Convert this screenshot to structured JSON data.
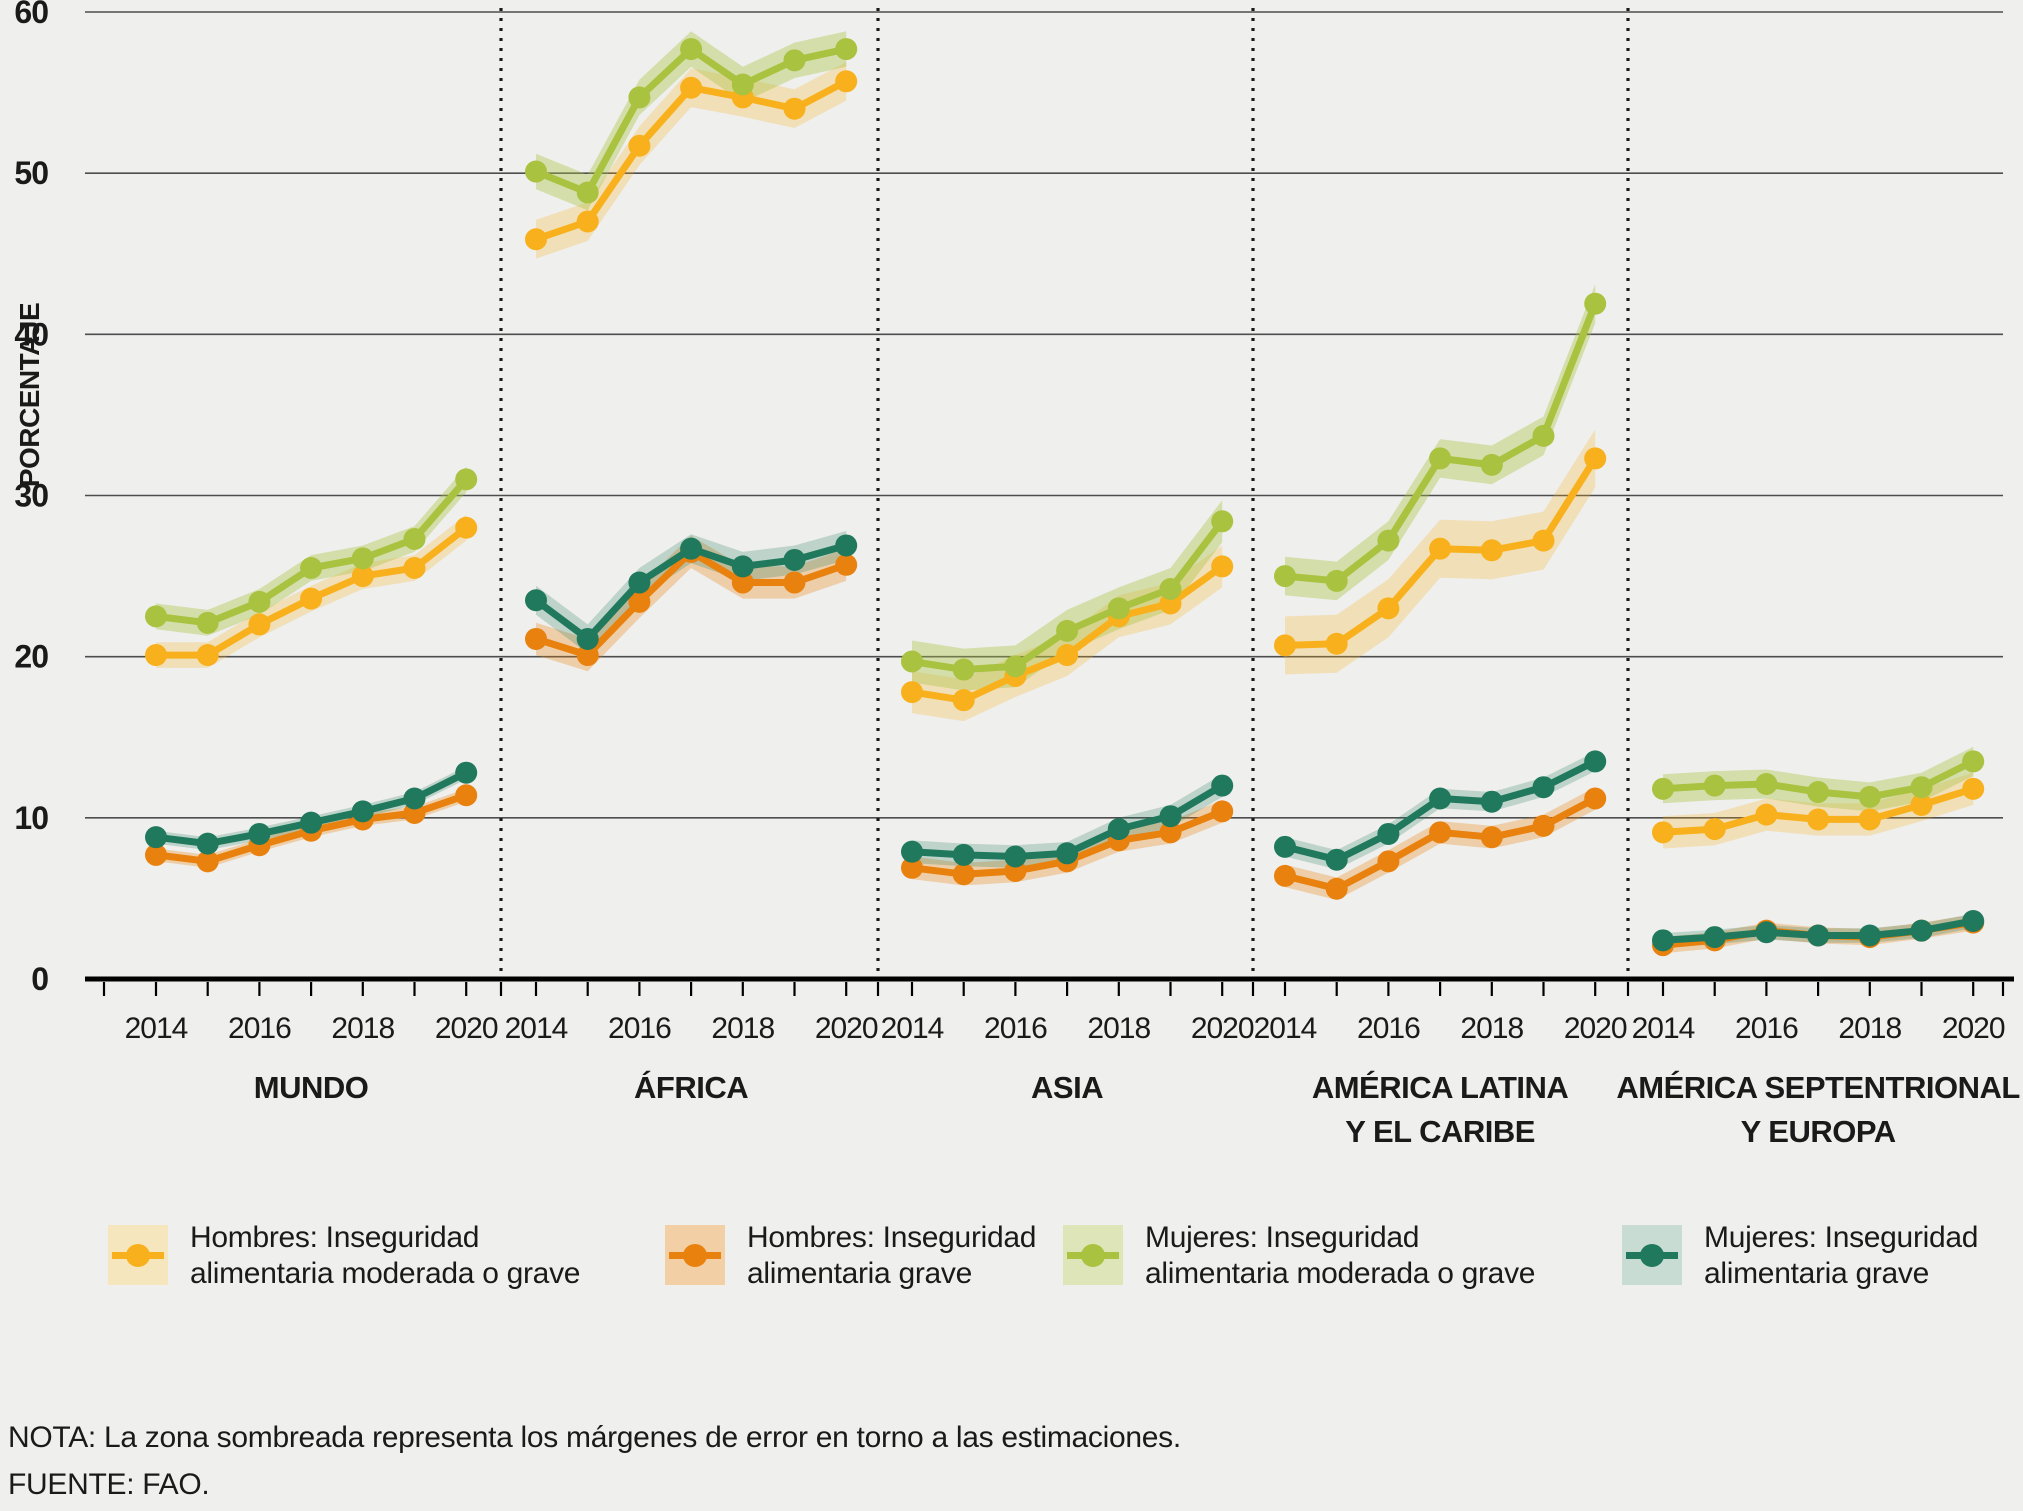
{
  "chart_data": {
    "type": "line",
    "title": "",
    "ylabel": "PORCENTAJE",
    "ylim": [
      0,
      60
    ],
    "yticks": [
      0,
      10,
      20,
      30,
      40,
      50,
      60
    ],
    "x": [
      2014,
      2015,
      2016,
      2017,
      2018,
      2019,
      2020
    ],
    "xtick_labels_shown": [
      "2014",
      "2016",
      "2018",
      "2020"
    ],
    "grid": "horizontal",
    "legend_position": "bottom",
    "shaded_bands": "error margins around estimates",
    "series_styles": [
      {
        "key": "hombres_moderada_o_grave",
        "label": "Hombres: Inseguridad alimentaria moderada o grave",
        "color": "#F8B11C",
        "band_fill": "rgba(248,177,28,0.25)",
        "legend_band": "#F6E6BE"
      },
      {
        "key": "hombres_grave",
        "label": "Hombres: Inseguridad alimentaria grave",
        "color": "#E8810E",
        "band_fill": "rgba(232,129,14,0.30)",
        "legend_band": "#F2CFA4"
      },
      {
        "key": "mujeres_moderada_o_grave",
        "label": "Mujeres: Inseguridad alimentaria moderada o grave",
        "color": "#A9C23F",
        "band_fill": "rgba(169,194,63,0.38)",
        "legend_band": "#DEE6B9"
      },
      {
        "key": "mujeres_grave",
        "label": "Mujeres: Inseguridad alimentaria grave",
        "color": "#20795D",
        "band_fill": "rgba(32,121,93,0.24)",
        "legend_band": "#C9DCD3"
      }
    ],
    "panels": [
      {
        "region_lines": [
          "MUNDO"
        ],
        "series": [
          {
            "key": "hombres_moderada_o_grave",
            "values": [
              20.1,
              20.1,
              22.0,
              23.6,
              25.0,
              25.5,
              28.0
            ],
            "error_margin": 0.8
          },
          {
            "key": "hombres_grave",
            "values": [
              7.7,
              7.3,
              8.3,
              9.2,
              9.9,
              10.3,
              11.4
            ],
            "error_margin": 0.4
          },
          {
            "key": "mujeres_moderada_o_grave",
            "values": [
              22.5,
              22.1,
              23.4,
              25.5,
              26.1,
              27.3,
              31.0
            ],
            "error_margin": 0.8
          },
          {
            "key": "mujeres_grave",
            "values": [
              8.8,
              8.4,
              9.0,
              9.7,
              10.4,
              11.2,
              12.8
            ],
            "error_margin": 0.4
          }
        ]
      },
      {
        "region_lines": [
          "ÁFRICA"
        ],
        "series": [
          {
            "key": "hombres_moderada_o_grave",
            "values": [
              45.9,
              47.0,
              51.7,
              55.3,
              54.7,
              54.0,
              55.7
            ],
            "error_margin": 1.2
          },
          {
            "key": "hombres_grave",
            "values": [
              21.1,
              20.1,
              23.4,
              26.5,
              24.6,
              24.6,
              25.7
            ],
            "error_margin": 1.0
          },
          {
            "key": "mujeres_moderada_o_grave",
            "values": [
              50.1,
              48.8,
              54.7,
              57.7,
              55.5,
              57.0,
              57.7
            ],
            "error_margin": 1.1
          },
          {
            "key": "mujeres_grave",
            "values": [
              23.5,
              21.1,
              24.6,
              26.7,
              25.6,
              26.0,
              26.9
            ],
            "error_margin": 0.9
          }
        ]
      },
      {
        "region_lines": [
          "ASIA"
        ],
        "series": [
          {
            "key": "hombres_moderada_o_grave",
            "values": [
              17.8,
              17.3,
              18.8,
              20.1,
              22.5,
              23.3,
              25.6
            ],
            "error_margin": 1.3
          },
          {
            "key": "hombres_grave",
            "values": [
              6.9,
              6.5,
              6.7,
              7.3,
              8.6,
              9.1,
              10.4
            ],
            "error_margin": 0.7
          },
          {
            "key": "mujeres_moderada_o_grave",
            "values": [
              19.7,
              19.2,
              19.4,
              21.6,
              23.0,
              24.2,
              28.4
            ],
            "error_margin": 1.3
          },
          {
            "key": "mujeres_grave",
            "values": [
              7.9,
              7.7,
              7.6,
              7.8,
              9.3,
              10.1,
              12.0
            ],
            "error_margin": 0.7
          }
        ]
      },
      {
        "region_lines": [
          "AMÉRICA LATINA",
          "Y EL CARIBE"
        ],
        "series": [
          {
            "key": "hombres_moderada_o_grave",
            "values": [
              20.7,
              20.8,
              23.0,
              26.7,
              26.6,
              27.2,
              32.3
            ],
            "error_margin": 1.8
          },
          {
            "key": "hombres_grave",
            "values": [
              6.4,
              5.6,
              7.3,
              9.1,
              8.8,
              9.5,
              11.2
            ],
            "error_margin": 0.7
          },
          {
            "key": "mujeres_moderada_o_grave",
            "values": [
              25.0,
              24.7,
              27.2,
              32.3,
              31.9,
              33.7,
              41.9
            ],
            "error_margin": 1.2
          },
          {
            "key": "mujeres_grave",
            "values": [
              8.2,
              7.4,
              9.0,
              11.2,
              11.0,
              11.9,
              13.5
            ],
            "error_margin": 0.6
          }
        ]
      },
      {
        "region_lines": [
          "AMÉRICA SEPTENTRIONAL",
          "Y EUROPA"
        ],
        "series": [
          {
            "key": "hombres_moderada_o_grave",
            "values": [
              9.1,
              9.3,
              10.2,
              9.9,
              9.9,
              10.8,
              11.8
            ],
            "error_margin": 1.0
          },
          {
            "key": "hombres_grave",
            "values": [
              2.1,
              2.4,
              3.0,
              2.7,
              2.6,
              3.0,
              3.5
            ],
            "error_margin": 0.5
          },
          {
            "key": "mujeres_moderada_o_grave",
            "values": [
              11.8,
              12.0,
              12.1,
              11.6,
              11.3,
              11.9,
              13.5
            ],
            "error_margin": 0.9
          },
          {
            "key": "mujeres_grave",
            "values": [
              2.4,
              2.6,
              2.9,
              2.7,
              2.7,
              3.0,
              3.6
            ],
            "error_margin": 0.45
          }
        ]
      }
    ]
  },
  "legend": {
    "items": [
      {
        "line1": "Hombres: Inseguridad",
        "line2": "alimentaria moderada o grave",
        "color": "#F8B11C",
        "band": "#F6E6BE"
      },
      {
        "line1": "Hombres: Inseguridad",
        "line2": "alimentaria grave",
        "color": "#E8810E",
        "band": "#F2CFA4"
      },
      {
        "line1": "Mujeres: Inseguridad",
        "line2": "alimentaria moderada o grave",
        "color": "#A9C23F",
        "band": "#DEE6B9"
      },
      {
        "line1": "Mujeres: Inseguridad",
        "line2": "alimentaria grave",
        "color": "#20795D",
        "band": "#C9DCD3"
      }
    ]
  },
  "note": {
    "nota": "NOTA: La zona sombreada representa los márgenes de error en torno a las estimaciones.",
    "fuente": "FUENTE: FAO."
  },
  "colors": {
    "background": "#efefed",
    "grid": "#4d4d4f",
    "axis": "#000000"
  }
}
